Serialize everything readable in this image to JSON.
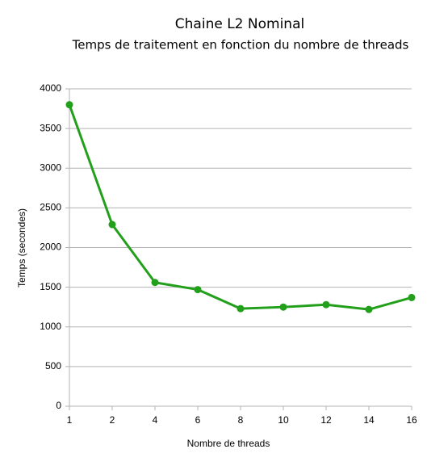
{
  "chart_data": {
    "type": "line",
    "title": "Chaine L2 Nominal",
    "subtitle": "Temps de traitement en fonction du nombre de threads",
    "x_label": "Nombre de threads",
    "y_label": "Temps (secondes)",
    "categories": [
      "1",
      "2",
      "4",
      "6",
      "8",
      "10",
      "12",
      "14",
      "16"
    ],
    "values": [
      3800,
      2290,
      1560,
      1470,
      1230,
      1250,
      1280,
      1220,
      1370
    ],
    "color": "#22a01b",
    "ylim": [
      0,
      4000
    ],
    "yticks": [
      0,
      500,
      1000,
      1500,
      2000,
      2500,
      3000,
      3500,
      4000
    ],
    "grid": true
  }
}
